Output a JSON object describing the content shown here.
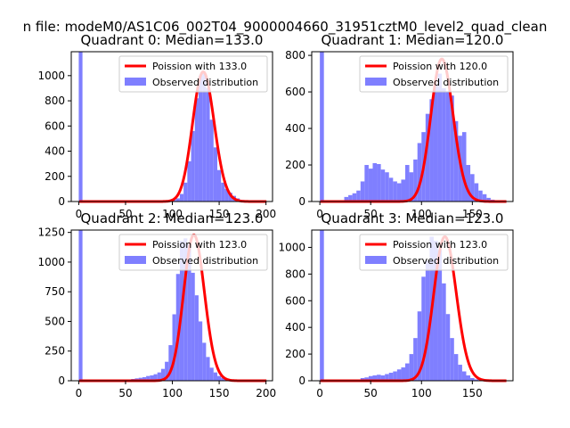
{
  "figure": {
    "suptitle": "n file: modeM0/AS1C06_002T04_9000004660_31951cztM0_level2_quad_clean"
  },
  "colors": {
    "fit": "#ff0000",
    "observed": "#7f7fff",
    "axes": "#000000"
  },
  "chart_data": [
    {
      "type": "bar",
      "title": "Quadrant 0: Median=133.0",
      "xlim": [
        -8,
        207
      ],
      "ylim": [
        0,
        1190
      ],
      "xticks": [
        0,
        50,
        100,
        150,
        200
      ],
      "yticks": [
        0,
        200,
        400,
        600,
        800,
        1000
      ],
      "bin_width": 4,
      "hist_x": [
        0,
        4,
        8,
        12,
        16,
        20,
        24,
        28,
        32,
        36,
        40,
        44,
        48,
        52,
        56,
        60,
        64,
        68,
        72,
        76,
        80,
        84,
        88,
        92,
        96,
        100,
        104,
        108,
        112,
        116,
        120,
        124,
        128,
        132,
        136,
        140,
        144,
        148,
        152,
        156,
        160,
        164,
        168,
        172,
        176,
        180,
        184,
        188,
        192,
        196
      ],
      "hist_y": [
        1190,
        0,
        0,
        0,
        0,
        0,
        0,
        0,
        0,
        0,
        0,
        0,
        0,
        0,
        0,
        0,
        0,
        0,
        0,
        0,
        0,
        0,
        0,
        3,
        6,
        12,
        25,
        60,
        150,
        320,
        560,
        820,
        1000,
        1020,
        900,
        650,
        430,
        250,
        150,
        100,
        70,
        45,
        25,
        12,
        6,
        4,
        2,
        1,
        1,
        0
      ],
      "fit_lambda": 133.0,
      "fit_peak": 1030,
      "fit_range": [
        0,
        200
      ],
      "legend": {
        "placement": "upper right",
        "fit_label": "Poission with 133.0",
        "obs_label": "Observed distribution"
      }
    },
    {
      "type": "bar",
      "title": "Quadrant 1: Median=120.0",
      "xlim": [
        -8,
        190
      ],
      "ylim": [
        0,
        820
      ],
      "xticks": [
        0,
        50,
        100,
        150
      ],
      "yticks": [
        0,
        200,
        400,
        600,
        800
      ],
      "bin_width": 4,
      "hist_x": [
        0,
        4,
        8,
        12,
        16,
        20,
        24,
        28,
        32,
        36,
        40,
        44,
        48,
        52,
        56,
        60,
        64,
        68,
        72,
        76,
        80,
        84,
        88,
        92,
        96,
        100,
        104,
        108,
        112,
        116,
        120,
        124,
        128,
        132,
        136,
        140,
        144,
        148,
        152,
        156,
        160,
        164,
        168,
        172,
        176,
        180
      ],
      "hist_y": [
        820,
        0,
        0,
        0,
        0,
        5,
        25,
        35,
        45,
        60,
        110,
        200,
        180,
        210,
        205,
        175,
        160,
        130,
        110,
        100,
        120,
        200,
        160,
        230,
        320,
        380,
        480,
        560,
        640,
        700,
        620,
        600,
        580,
        440,
        360,
        380,
        200,
        150,
        100,
        60,
        40,
        20,
        10,
        5,
        3,
        0
      ],
      "fit_lambda": 120.0,
      "fit_peak": 780,
      "fit_range": [
        0,
        183
      ],
      "legend": {
        "placement": "upper right",
        "fit_label": "Poission with 120.0",
        "obs_label": "Observed distribution"
      }
    },
    {
      "type": "bar",
      "title": "Quadrant 2: Median=123.0",
      "xlim": [
        -8,
        207
      ],
      "ylim": [
        0,
        1270
      ],
      "xticks": [
        0,
        50,
        100,
        150,
        200
      ],
      "yticks": [
        0,
        250,
        500,
        750,
        1000,
        1250
      ],
      "bin_width": 4,
      "hist_x": [
        0,
        4,
        8,
        12,
        16,
        20,
        24,
        28,
        32,
        36,
        40,
        44,
        48,
        52,
        56,
        60,
        64,
        68,
        72,
        76,
        80,
        84,
        88,
        92,
        96,
        100,
        104,
        108,
        112,
        116,
        120,
        124,
        128,
        132,
        136,
        140,
        144,
        148,
        152,
        156,
        160,
        164,
        168,
        172,
        176,
        180,
        184,
        188,
        192,
        196
      ],
      "hist_y": [
        1270,
        0,
        0,
        0,
        0,
        0,
        0,
        0,
        0,
        0,
        0,
        0,
        5,
        10,
        15,
        20,
        25,
        30,
        40,
        45,
        55,
        70,
        100,
        160,
        300,
        560,
        900,
        1180,
        1200,
        1150,
        910,
        720,
        500,
        320,
        200,
        110,
        70,
        40,
        25,
        15,
        8,
        5,
        3,
        2,
        1,
        1,
        0,
        0,
        0,
        0
      ],
      "fit_lambda": 123.0,
      "fit_peak": 1230,
      "fit_range": [
        0,
        200
      ],
      "legend": {
        "placement": "upper right",
        "fit_label": "Poission with 123.0",
        "obs_label": "Observed distribution"
      }
    },
    {
      "type": "bar",
      "title": "Quadrant 3: Median=123.0",
      "xlim": [
        -8,
        190
      ],
      "ylim": [
        0,
        1130
      ],
      "xticks": [
        0,
        50,
        100,
        150
      ],
      "yticks": [
        0,
        200,
        400,
        600,
        800,
        1000
      ],
      "bin_width": 4,
      "hist_x": [
        0,
        4,
        8,
        12,
        16,
        20,
        24,
        28,
        32,
        36,
        40,
        44,
        48,
        52,
        56,
        60,
        64,
        68,
        72,
        76,
        80,
        84,
        88,
        92,
        96,
        100,
        104,
        108,
        112,
        116,
        120,
        124,
        128,
        132,
        136,
        140,
        144,
        148,
        152,
        156,
        160,
        164,
        168,
        172,
        176,
        180
      ],
      "hist_y": [
        1130,
        0,
        0,
        0,
        0,
        0,
        0,
        0,
        5,
        10,
        20,
        25,
        35,
        40,
        45,
        40,
        50,
        60,
        70,
        85,
        100,
        130,
        200,
        320,
        520,
        780,
        900,
        1080,
        1050,
        980,
        730,
        500,
        320,
        200,
        120,
        70,
        40,
        20,
        10,
        5,
        3,
        2,
        1,
        0,
        0,
        0
      ],
      "fit_lambda": 123.0,
      "fit_peak": 1080,
      "fit_range": [
        0,
        183
      ],
      "legend": {
        "placement": "upper right",
        "fit_label": "Poission with 123.0",
        "obs_label": "Observed distribution"
      }
    }
  ]
}
